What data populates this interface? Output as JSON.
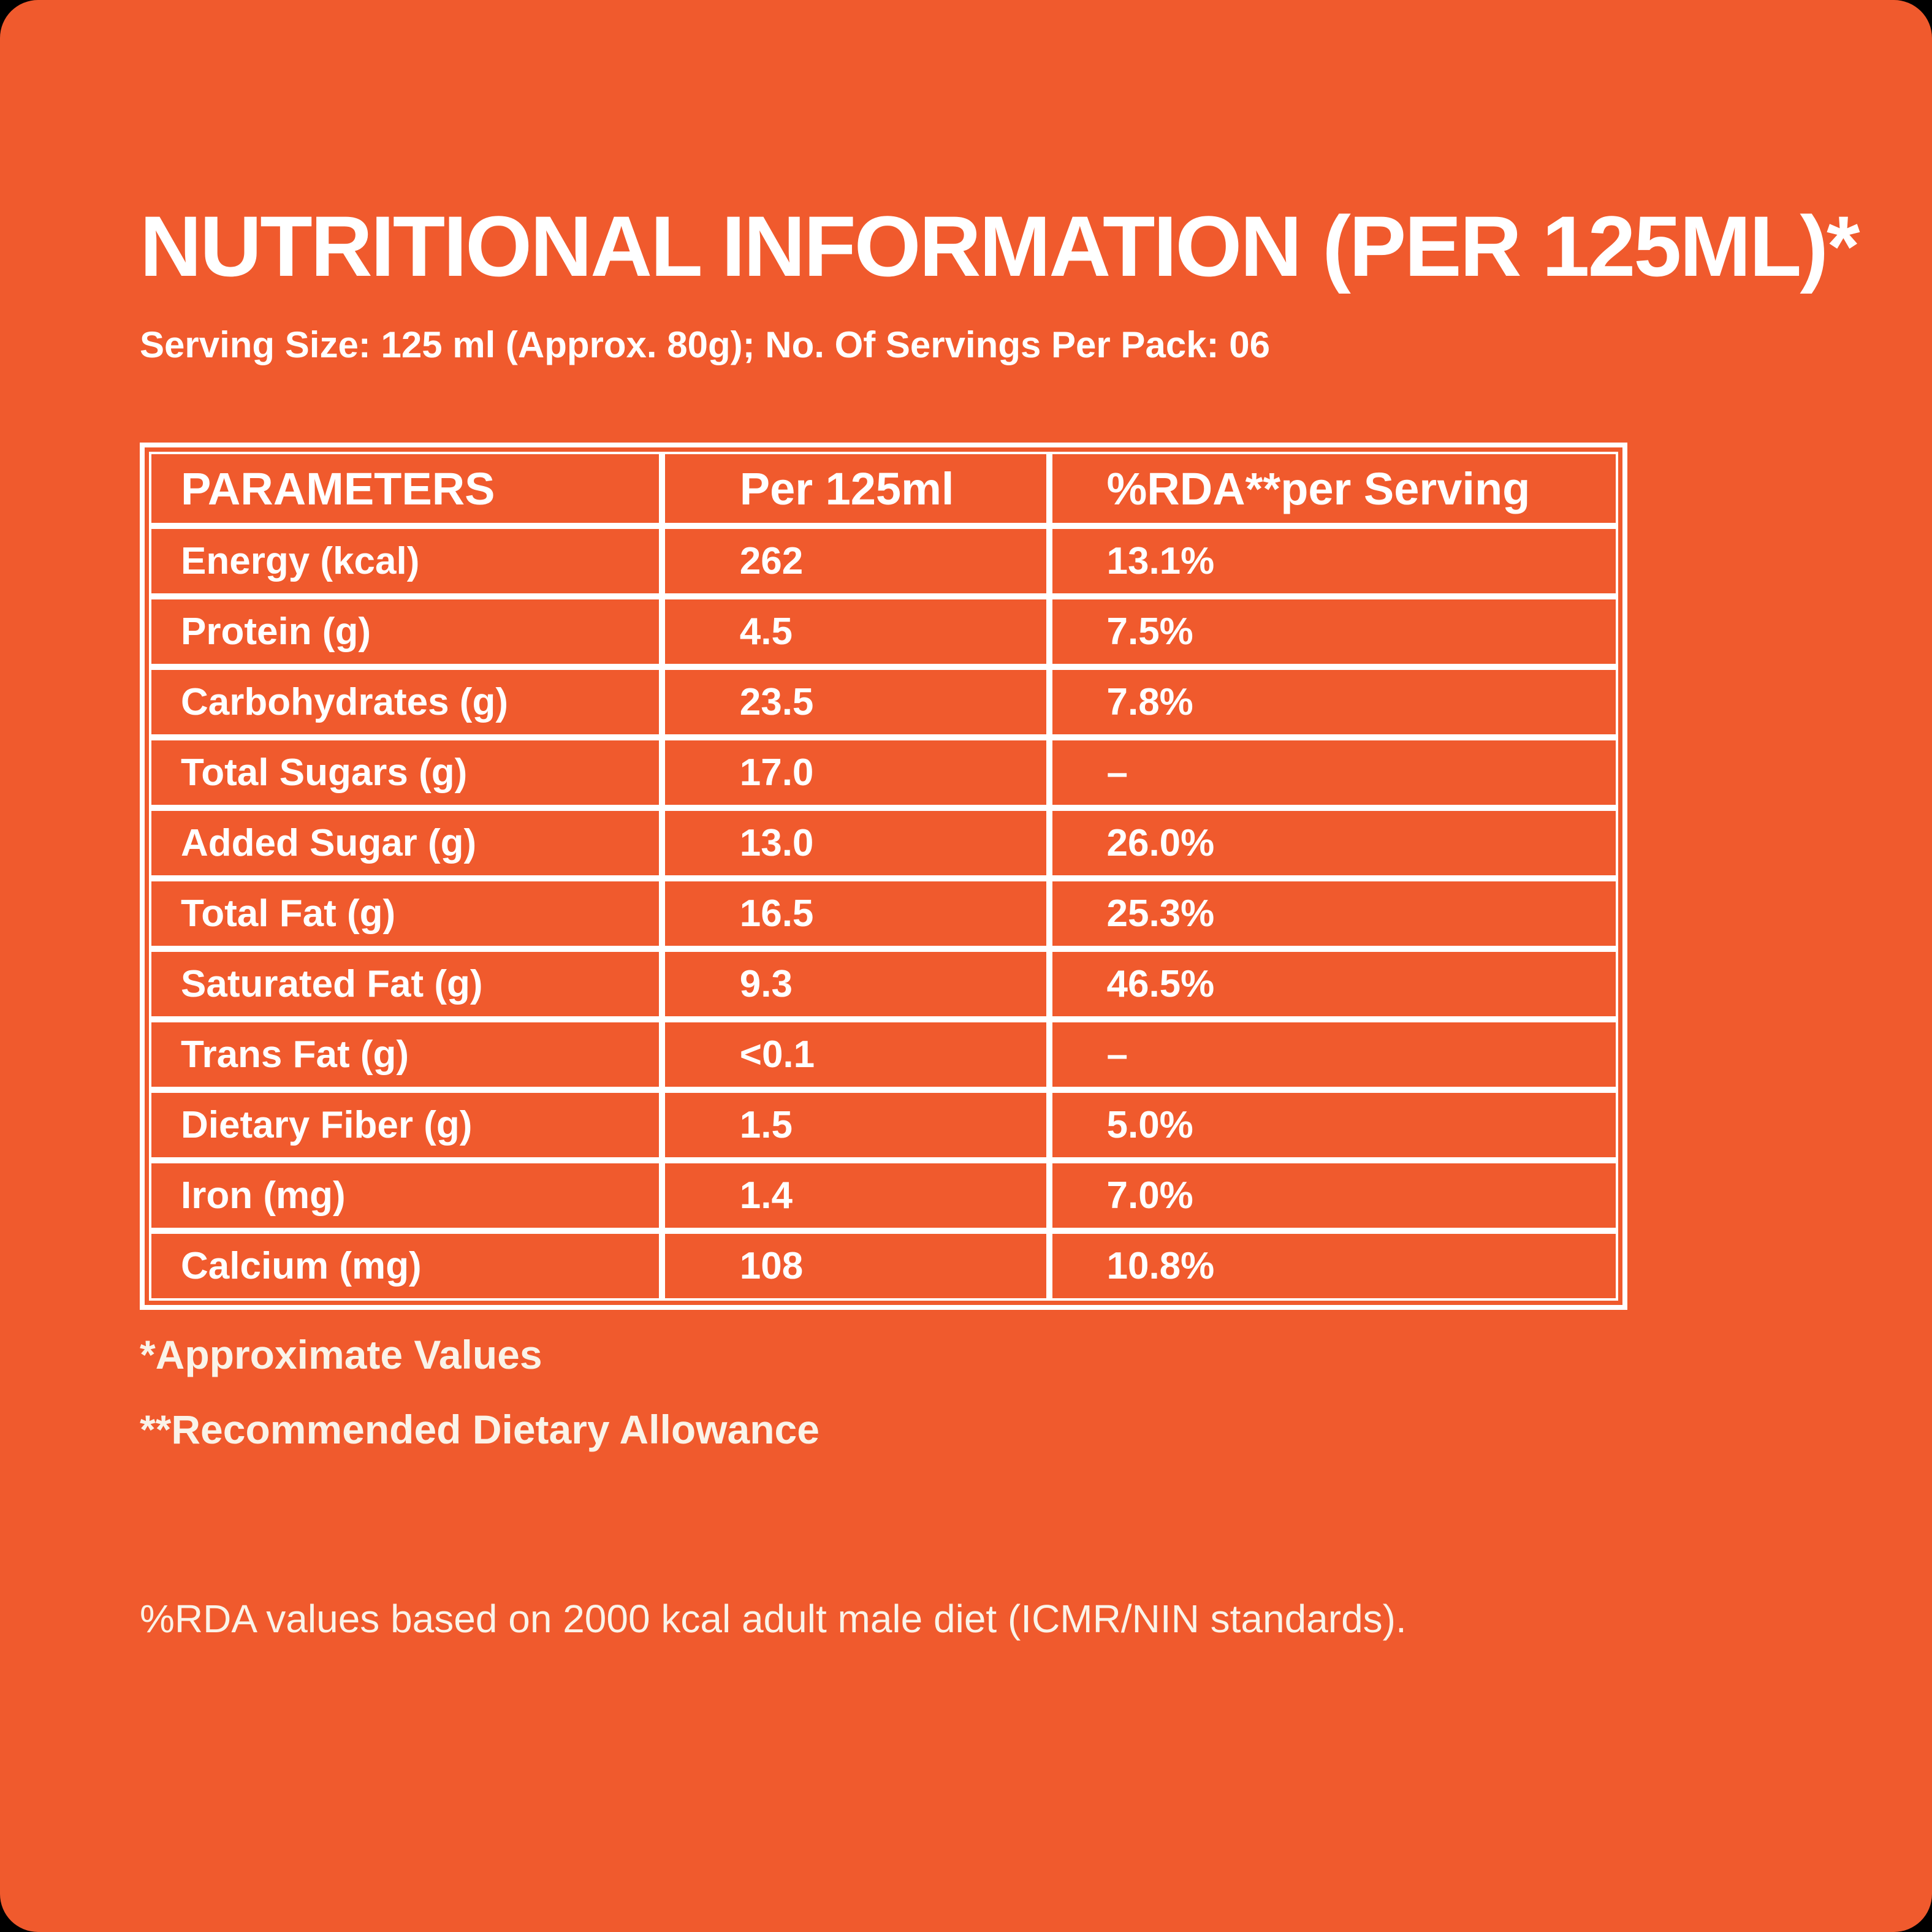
{
  "title": "NUTRITIONAL INFORMATION (PER 125ML)*",
  "serving_line": "Serving Size: 125 ml (Approx. 80g); No. Of Servings Per Pack: 06",
  "table": {
    "headers": [
      "PARAMETERS",
      "Per 125ml",
      "%RDA**per Serving"
    ],
    "rows": [
      {
        "parameter": "Energy (kcal)",
        "per_125ml": "262",
        "rda_per_serving": "13.1%"
      },
      {
        "parameter": "Protein (g)",
        "per_125ml": "4.5",
        "rda_per_serving": "7.5%"
      },
      {
        "parameter": "Carbohydrates (g)",
        "per_125ml": "23.5",
        "rda_per_serving": "7.8%"
      },
      {
        "parameter": "Total Sugars (g)",
        "per_125ml": "17.0",
        "rda_per_serving": "–"
      },
      {
        "parameter": "Added Sugar (g)",
        "per_125ml": "13.0",
        "rda_per_serving": "26.0%"
      },
      {
        "parameter": "Total Fat (g)",
        "per_125ml": "16.5",
        "rda_per_serving": "25.3%"
      },
      {
        "parameter": "Saturated Fat (g)",
        "per_125ml": "9.3",
        "rda_per_serving": "46.5%"
      },
      {
        "parameter": "Trans Fat (g)",
        "per_125ml": "<0.1",
        "rda_per_serving": "–"
      },
      {
        "parameter": "Dietary Fiber (g)",
        "per_125ml": "1.5",
        "rda_per_serving": "5.0%"
      },
      {
        "parameter": "Iron (mg)",
        "per_125ml": "1.4",
        "rda_per_serving": "7.0%"
      },
      {
        "parameter": "Calcium (mg)",
        "per_125ml": "108",
        "rda_per_serving": "10.8%"
      }
    ]
  },
  "footnotes": [
    "*Approximate Values",
    "**Recommended Dietary Allowance"
  ],
  "rda_note": "%RDA values based on 2000 kcal adult male diet (ICMR/NIN standards).",
  "colors": {
    "background_orange": "#F05A2D",
    "outer_background": "#000000",
    "table_line_white": "#FFFFFF",
    "text_white": "#FFFFFF",
    "text_cream": "#FAF3E8"
  }
}
